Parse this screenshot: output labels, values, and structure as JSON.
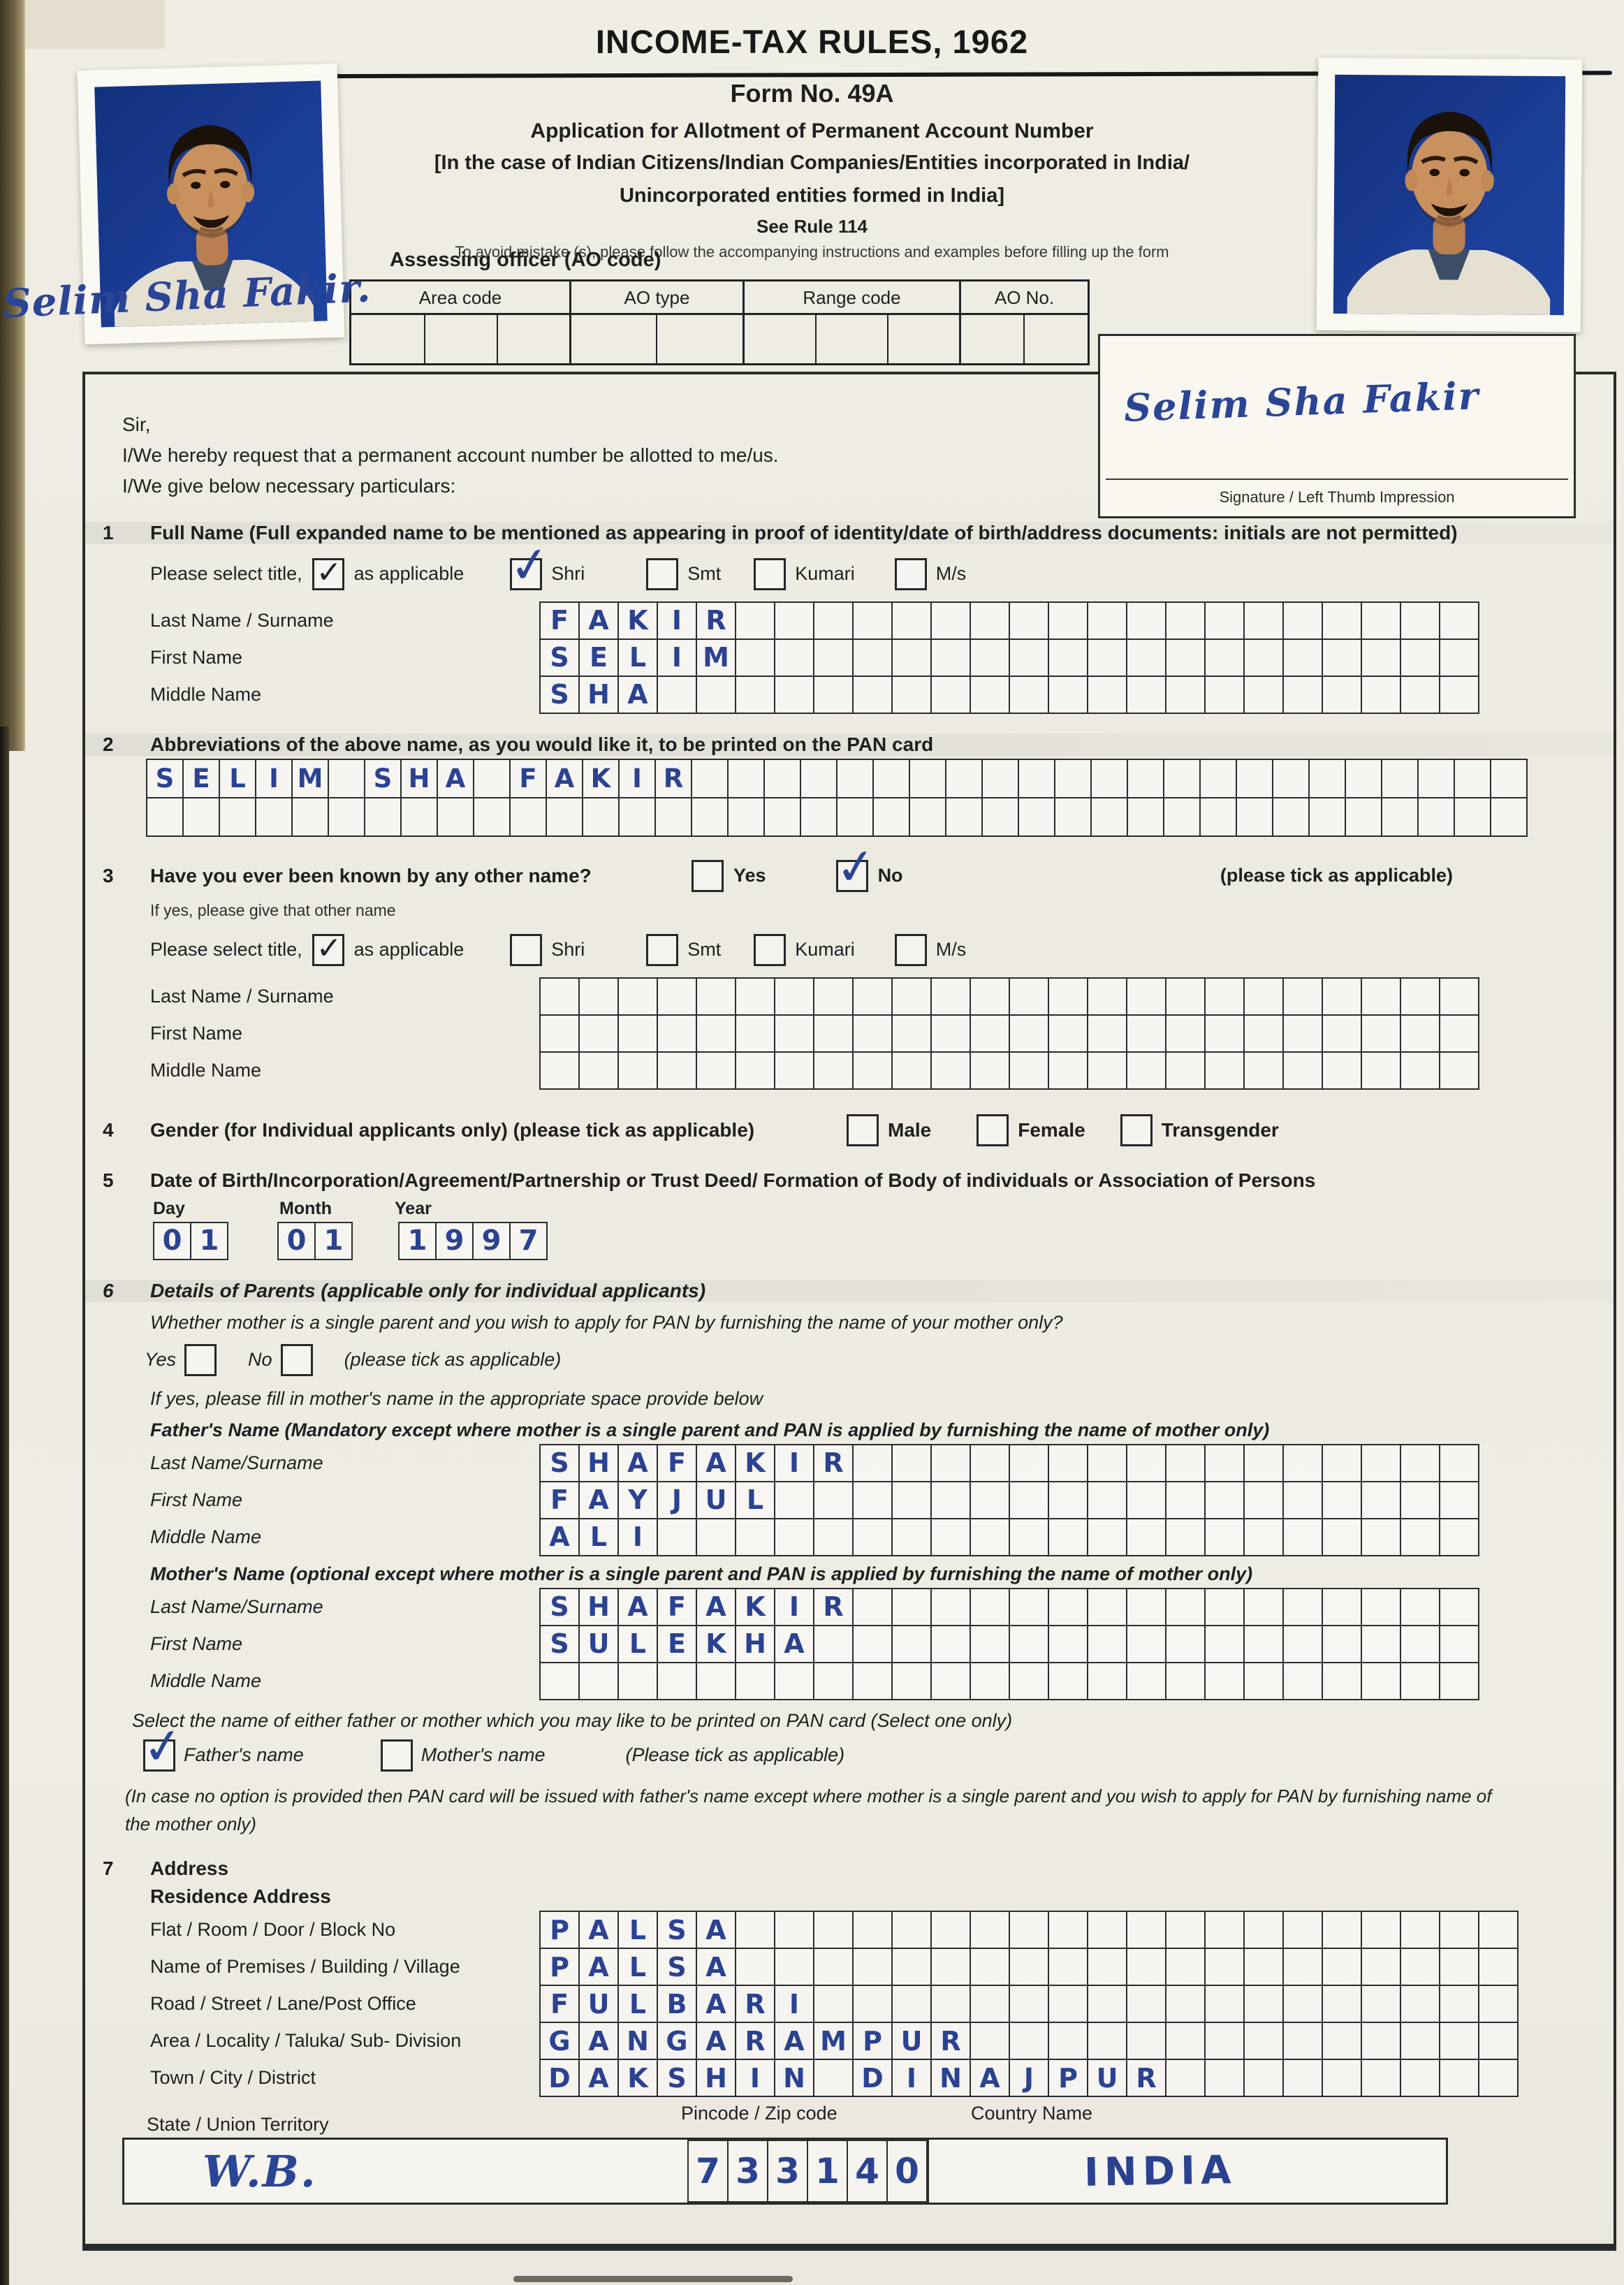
{
  "header": {
    "title": "INCOME-TAX RULES, 1962",
    "form_no": "Form No. 49A",
    "line1": "Application for Allotment of Permanent Account Number",
    "line2": "[In the case of Indian Citizens/Indian Companies/Entities incorporated in India/",
    "line3": "Unincorporated entities formed in India]",
    "rule": "See Rule 114",
    "note": "To avoid mistake (s), please follow the accompanying instructions and examples before filling up the form"
  },
  "ao": {
    "label": "Assessing officer (AO code)",
    "headers": [
      "Area code",
      "AO type",
      "Range code",
      "AO No."
    ]
  },
  "photo": {
    "overlay_signature": "Selim Sha Fakir."
  },
  "sigbox": {
    "signature": "Selim Sha Fakir",
    "label": "Signature / Left Thumb Impression"
  },
  "intro": {
    "sir": "Sir,",
    "l1": "I/We hereby request that a permanent account number be allotted to me/us.",
    "l2": "I/We give below necessary particulars:"
  },
  "s1": {
    "no": "1",
    "title": "Full Name (Full expanded name to be mentioned as appearing in proof of identity/date of birth/address documents: initials are not permitted)",
    "select_pre": "Please select title,",
    "select_post": "as applicable",
    "pre_checked": true,
    "opts": [
      {
        "label": "Shri",
        "checked": true
      },
      {
        "label": "Smt",
        "checked": false
      },
      {
        "label": "Kumari",
        "checked": false
      },
      {
        "label": "M/s",
        "checked": false
      }
    ],
    "rows": [
      {
        "label": "Last Name / Surname",
        "value": "FAKIR"
      },
      {
        "label": "First Name",
        "value": "SELIM"
      },
      {
        "label": "Middle Name",
        "value": "SHA"
      }
    ]
  },
  "s2": {
    "no": "2",
    "title": "Abbreviations of the above name, as you would like it, to be printed on the PAN card",
    "row1": "SELIM SHA FAKIR",
    "row2": ""
  },
  "s3": {
    "no": "3",
    "question": "Have you ever been known by any other name?",
    "yes_label": "Yes",
    "no_label": "No",
    "yes_checked": false,
    "no_checked": true,
    "tick_note": "(please tick as applicable)",
    "if_yes": "If yes, please give that other name",
    "select_pre": "Please select title,",
    "select_post": "as applicable",
    "pre_checked": true,
    "opts": [
      {
        "label": "Shri",
        "checked": false
      },
      {
        "label": "Smt",
        "checked": false
      },
      {
        "label": "Kumari",
        "checked": false
      },
      {
        "label": "M/s",
        "checked": false
      }
    ],
    "rows": [
      {
        "label": "Last Name / Surname",
        "value": ""
      },
      {
        "label": "First Name",
        "value": ""
      },
      {
        "label": "Middle Name",
        "value": ""
      }
    ]
  },
  "s4": {
    "no": "4",
    "title": "Gender (for Individual applicants only) (please tick as applicable)",
    "opts": [
      {
        "label": "Male",
        "checked": false
      },
      {
        "label": "Female",
        "checked": false
      },
      {
        "label": "Transgender",
        "checked": false
      }
    ]
  },
  "s5": {
    "no": "5",
    "title": "Date of Birth/Incorporation/Agreement/Partnership or Trust Deed/ Formation of Body of individuals or Association of Persons",
    "day_label": "Day",
    "month_label": "Month",
    "year_label": "Year",
    "day": "01",
    "month": "01",
    "year": "1997"
  },
  "s6": {
    "no": "6",
    "title": "Details of Parents (applicable only for individual applicants)",
    "question": "Whether mother is a single parent and you wish to apply for PAN by furnishing the name of your mother only?",
    "yes_label": "Yes",
    "no_label": "No",
    "yes_checked": false,
    "no_checked": false,
    "tick_note": "(please tick as applicable)",
    "if_yes": "If yes, please fill in mother's name in the appropriate space provide below",
    "father_heading": "Father's Name (Mandatory except where mother is a single parent and PAN is applied by furnishing the name of mother only)",
    "father_rows": [
      {
        "label": "Last Name/Surname",
        "value": "SHAFAKIR"
      },
      {
        "label": "First Name",
        "value": "FAYJUL"
      },
      {
        "label": "Middle Name",
        "value": "ALI"
      }
    ],
    "mother_heading": "Mother's Name (optional except where mother is a single parent and PAN is applied by furnishing the name of mother only)",
    "mother_rows": [
      {
        "label": "Last Name/Surname",
        "value": "SHAFAKIR"
      },
      {
        "label": "First Name",
        "value": "SULEKHA"
      },
      {
        "label": "Middle Name",
        "value": ""
      }
    ],
    "select_line": "Select the name of either father or mother which you may like to be printed on PAN card (Select one only)",
    "father_opt": {
      "label": "Father's name",
      "checked": true
    },
    "mother_opt": {
      "label": "Mother's name",
      "checked": false
    },
    "tick_note2": "(Please tick as applicable)",
    "footnote": "(In case no option is provided then PAN card will be issued with father's name except where mother is a single parent and you wish to apply for PAN by furnishing name of the mother only)"
  },
  "s7": {
    "no": "7",
    "title": "Address",
    "residence": "Residence Address",
    "rows": [
      {
        "label": "Flat / Room / Door / Block No",
        "value": "PALSA"
      },
      {
        "label": "Name of Premises / Building / Village",
        "value": "PALSA"
      },
      {
        "label": "Road / Street / Lane/Post Office",
        "value": "FULBARI"
      },
      {
        "label": "Area / Locality / Taluka/ Sub- Division",
        "value": "GANGARAMPUR"
      },
      {
        "label": "Town / City / District",
        "value": "DAKSHIN DINAJPUR"
      }
    ],
    "state_label": "State / Union Territory",
    "pincode_label": "Pincode / Zip code",
    "country_label": "Country Name",
    "state_value": "W.B.",
    "pincode_value": "733140",
    "country_value": "INDIA"
  }
}
